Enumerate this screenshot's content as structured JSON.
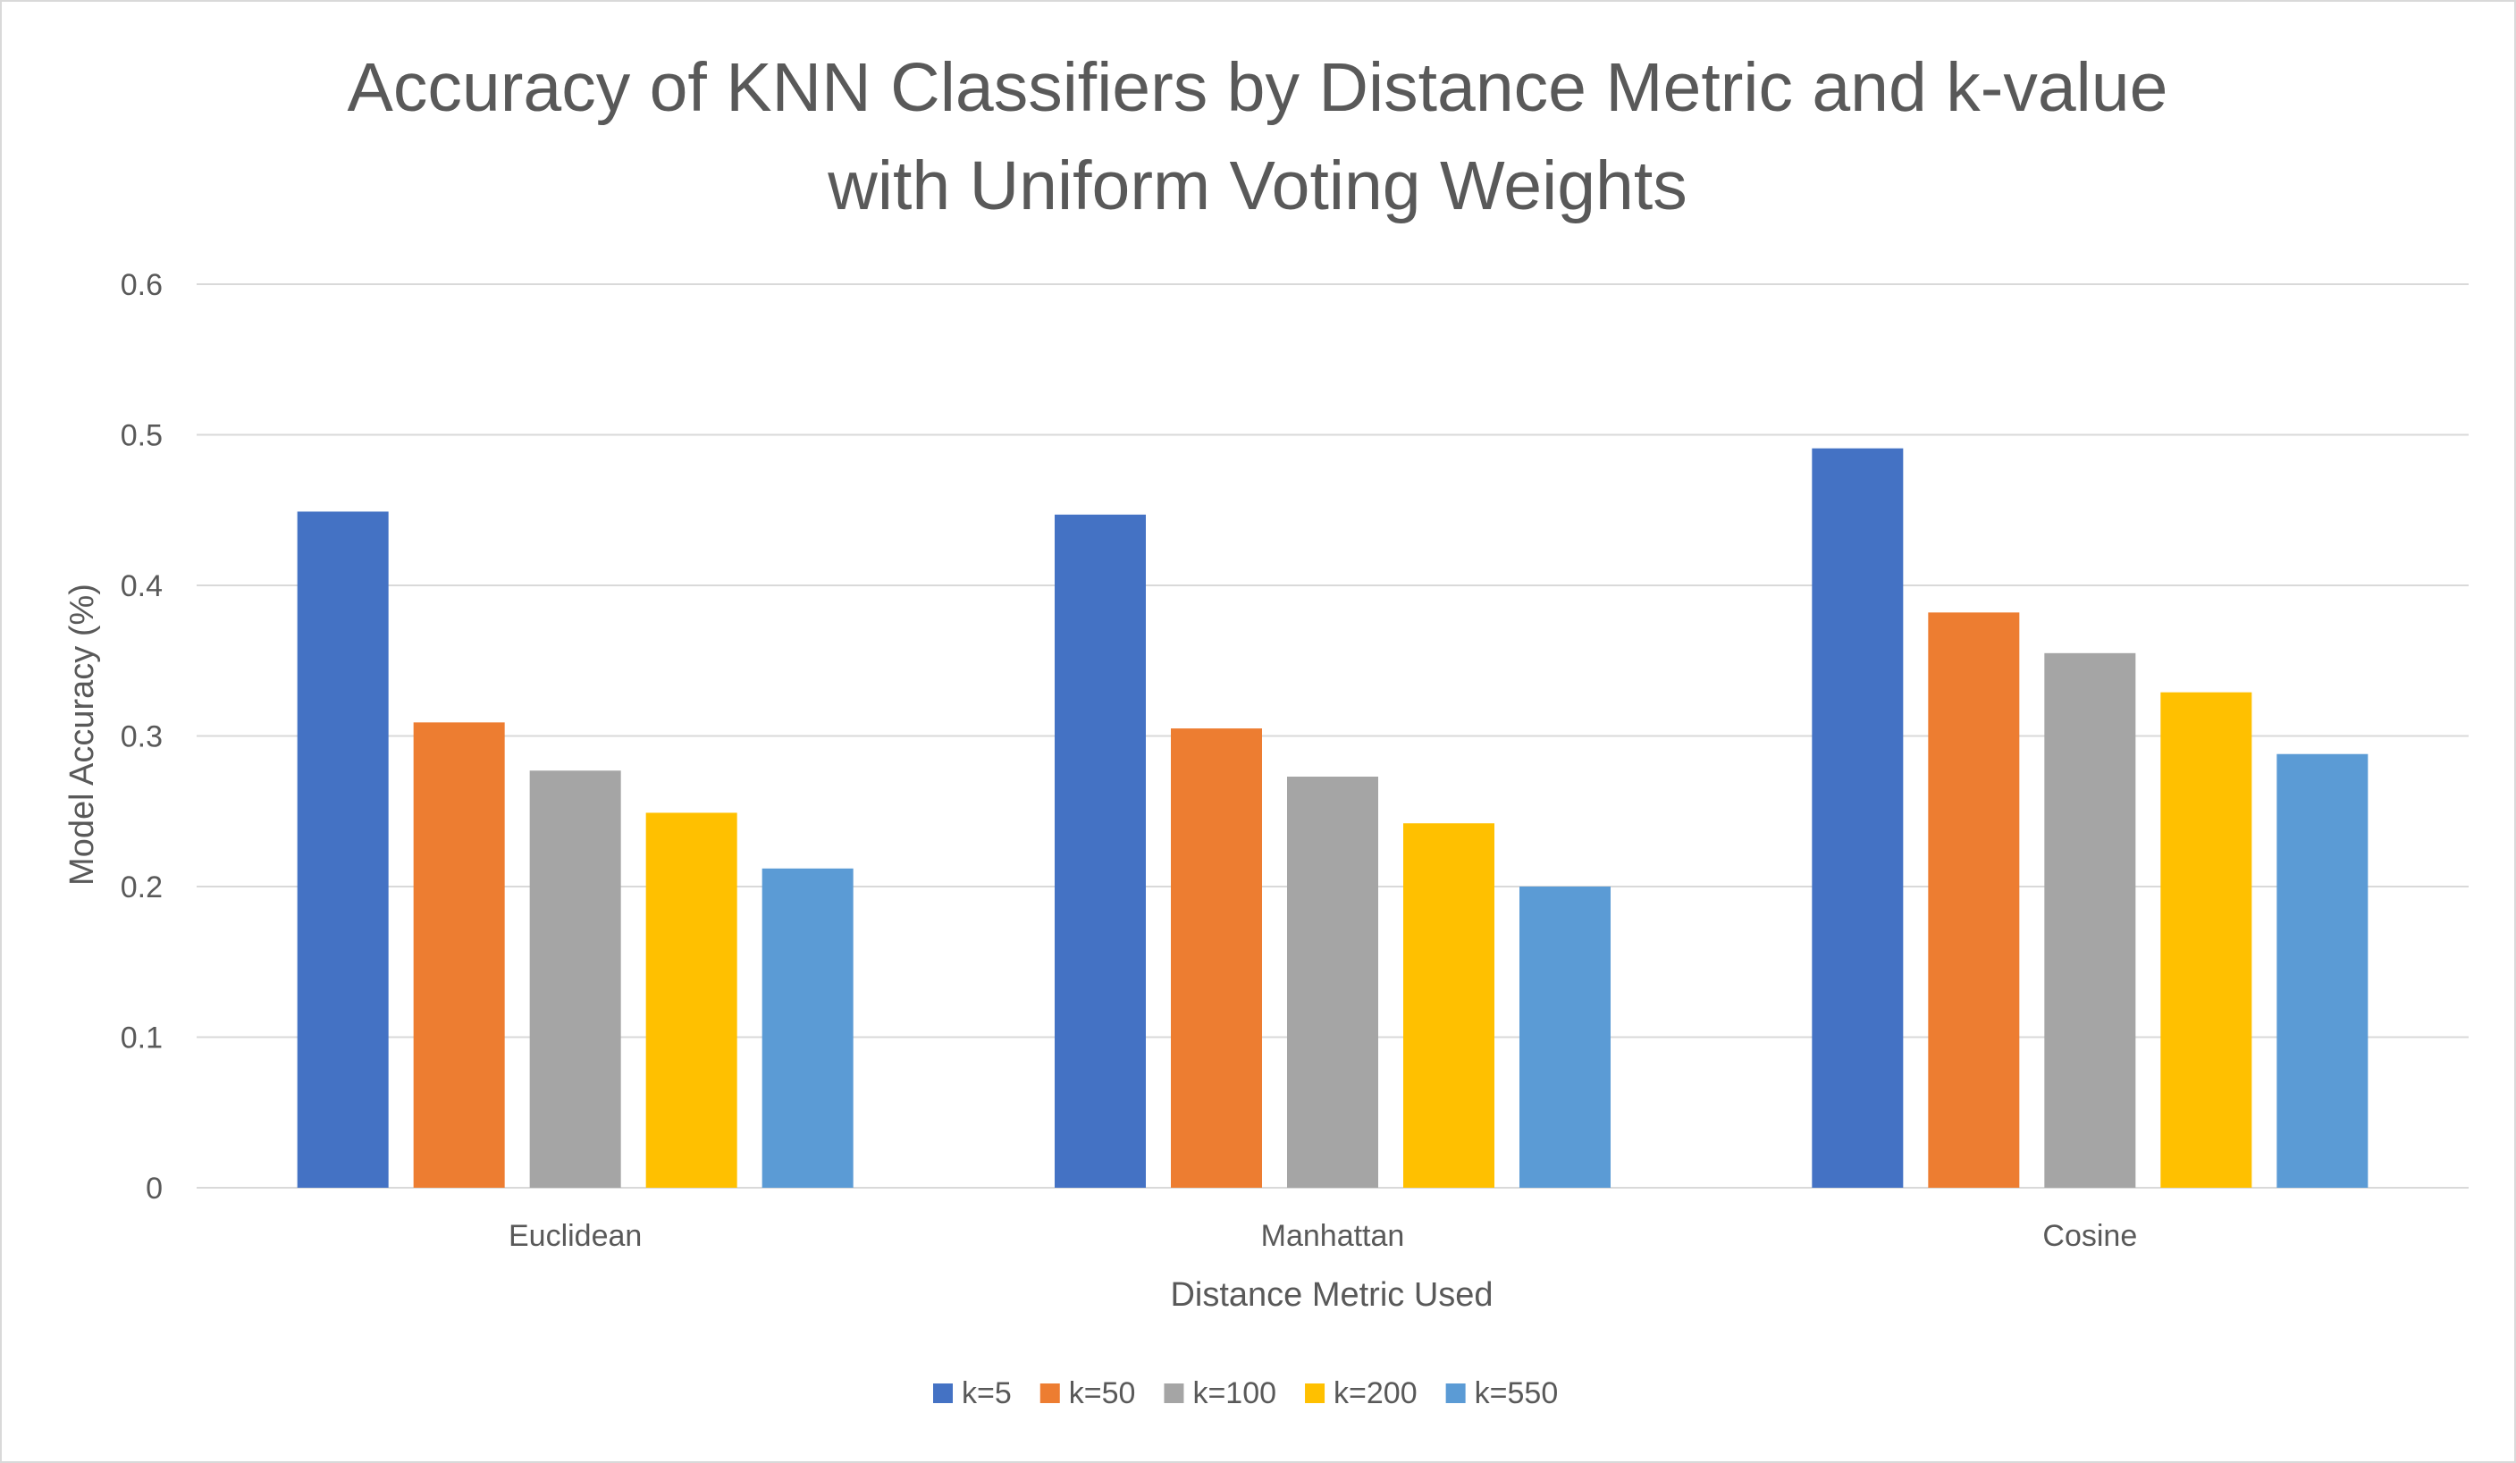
{
  "chart_data": {
    "type": "bar",
    "title_lines": [
      "Accuracy of KNN Classifiers by Distance Metric and k-value",
      "with Uniform Voting Weights"
    ],
    "xlabel": "Distance Metric Used",
    "ylabel": "Model Accuracy (%)",
    "categories": [
      "Euclidean",
      "Manhattan",
      "Cosine"
    ],
    "ylim": [
      0,
      0.6
    ],
    "yticks": [
      "0",
      "0.1",
      "0.2",
      "0.3",
      "0.4",
      "0.5",
      "0.6"
    ],
    "grid": true,
    "legend_position": "bottom",
    "series": [
      {
        "name": "k=5",
        "color": "#4472C4",
        "values": [
          0.449,
          0.447,
          0.491
        ]
      },
      {
        "name": "k=50",
        "color": "#ED7D31",
        "values": [
          0.309,
          0.305,
          0.382
        ]
      },
      {
        "name": "k=100",
        "color": "#A5A5A5",
        "values": [
          0.277,
          0.273,
          0.355
        ]
      },
      {
        "name": "k=200",
        "color": "#FFC000",
        "values": [
          0.249,
          0.242,
          0.329
        ]
      },
      {
        "name": "k=550",
        "color": "#5B9BD5",
        "values": [
          0.212,
          0.2,
          0.288
        ]
      }
    ]
  }
}
